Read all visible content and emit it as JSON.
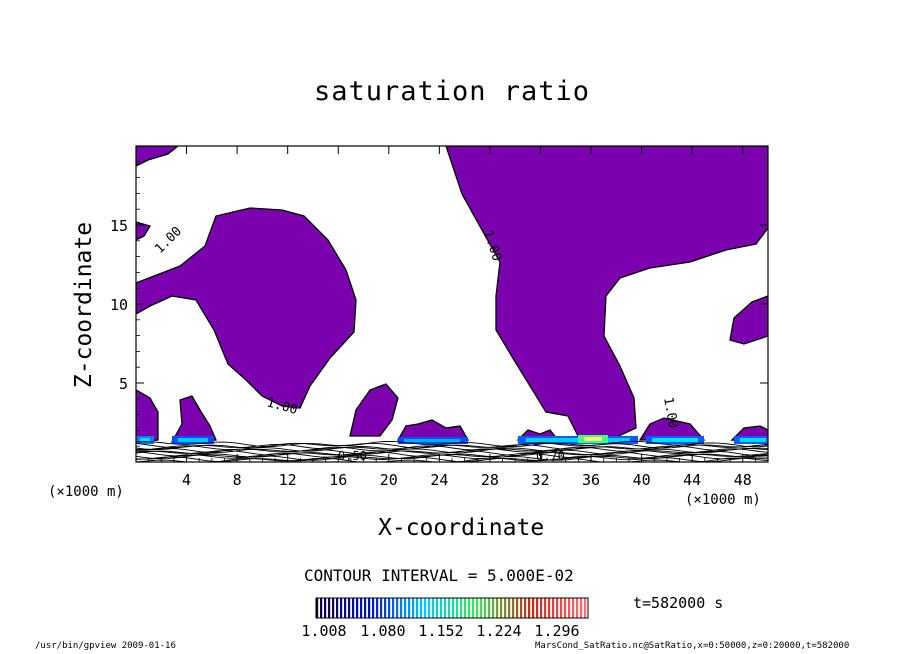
{
  "chart_data": {
    "type": "contour",
    "title": "saturation ratio",
    "xlabel": "X-coordinate",
    "ylabel": "Z-coordinate",
    "x_unit": "(×1000 m)",
    "z_unit": "(×1000 m)",
    "xlim": [
      0,
      50
    ],
    "ylim": [
      0,
      20
    ],
    "x_ticks": [
      4,
      8,
      12,
      16,
      20,
      24,
      28,
      32,
      36,
      40,
      44,
      48
    ],
    "y_ticks": [
      5,
      10,
      15
    ],
    "contour_interval_text": "CONTOUR INTERVAL = 5.000E-02",
    "contour_labels": [
      "1.00",
      "1.00",
      "1.00",
      "1.00",
      "0.50",
      "0.70"
    ],
    "colorbar_labels": [
      "1.008",
      "1.080",
      "1.152",
      "1.224",
      "1.296"
    ],
    "colorbar_range": [
      1.008,
      1.3
    ],
    "time_text": "t=582000 s",
    "fill_color": "#7b00ae",
    "grid": false
  },
  "footer": {
    "left": "/usr/bin/gpview   2009-01-16",
    "right": "MarsCond_SatRatio.nc@SatRatio,x=0:50000,z=0:20000,t=582000"
  }
}
